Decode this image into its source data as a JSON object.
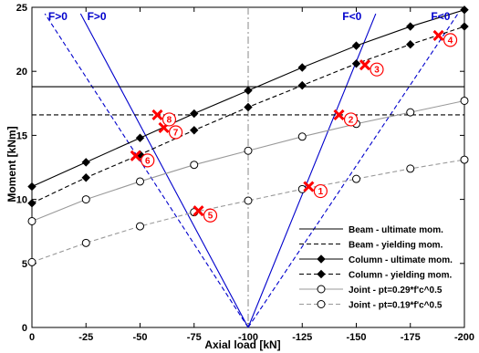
{
  "chart_data": {
    "type": "line",
    "xlabel": "Axial load [kN]",
    "ylabel": "Moment [kNm]",
    "xlim": [
      0,
      -200
    ],
    "ylim": [
      0,
      25
    ],
    "x_ticks": [
      0,
      -25,
      -50,
      -75,
      -100,
      -125,
      -150,
      -175,
      -200
    ],
    "x_tick_labels": [
      "0",
      "-25",
      "-50",
      "-75",
      "-100",
      "-125",
      "-150",
      "-175",
      "-200"
    ],
    "y_ticks": [
      0,
      5,
      10,
      15,
      20,
      25
    ],
    "y_tick_labels": [
      "0",
      "5",
      "10",
      "15",
      "20",
      "25"
    ],
    "grid": false,
    "legend_position": "bottom-right",
    "series": [
      {
        "name": "Beam - ultimate mom.",
        "style": "solid",
        "color": "#000000",
        "marker": "none",
        "x": [
          0,
          -200
        ],
        "y": [
          18.8,
          18.8
        ]
      },
      {
        "name": "Beam - yielding mom.",
        "style": "dashed",
        "color": "#000000",
        "marker": "none",
        "x": [
          0,
          -200
        ],
        "y": [
          16.6,
          16.6
        ]
      },
      {
        "name": "Column - ultimate mom.",
        "style": "solid",
        "color": "#000000",
        "marker": "diamond",
        "x": [
          0,
          -25,
          -50,
          -75,
          -100,
          -125,
          -150,
          -175,
          -200
        ],
        "y": [
          11.0,
          12.9,
          14.8,
          16.7,
          18.5,
          20.3,
          22.0,
          23.5,
          24.8
        ]
      },
      {
        "name": "Column - yielding mom.",
        "style": "dashed",
        "color": "#000000",
        "marker": "diamond",
        "x": [
          0,
          -25,
          -50,
          -75,
          -100,
          -125,
          -150,
          -175,
          -200
        ],
        "y": [
          9.7,
          11.7,
          13.5,
          15.4,
          17.2,
          18.9,
          20.6,
          22.1,
          23.5
        ]
      },
      {
        "name": "Joint - pt=0.29*f'c^0.5",
        "style": "solid",
        "color": "#999999",
        "marker": "circle",
        "x": [
          0,
          -25,
          -50,
          -75,
          -100,
          -125,
          -150,
          -175,
          -200
        ],
        "y": [
          8.3,
          10.0,
          11.4,
          12.7,
          13.8,
          14.9,
          15.9,
          16.8,
          17.7
        ]
      },
      {
        "name": "Joint - pt=0.19*f'c^0.5",
        "style": "dashed",
        "color": "#999999",
        "marker": "circle",
        "x": [
          0,
          -25,
          -50,
          -75,
          -100,
          -125,
          -150,
          -175,
          -200
        ],
        "y": [
          5.1,
          6.6,
          7.9,
          9.0,
          9.9,
          10.8,
          11.6,
          12.4,
          13.1
        ]
      }
    ],
    "load_lines": [
      {
        "label": "F>0",
        "style": "dashed",
        "color": "#0000cc",
        "x": [
          -100,
          -6
        ],
        "y": [
          0,
          24.5
        ]
      },
      {
        "label": "F>0",
        "style": "solid",
        "color": "#0000cc",
        "x": [
          -100,
          -22.5
        ],
        "y": [
          0,
          24.5
        ]
      },
      {
        "label": "F<0",
        "style": "solid",
        "color": "#0000cc",
        "x": [
          -100,
          -159
        ],
        "y": [
          0,
          24.5
        ]
      },
      {
        "label": "F<0",
        "style": "dashed",
        "color": "#0000cc",
        "x": [
          -100,
          -197
        ],
        "y": [
          0,
          24.5
        ]
      }
    ],
    "center_line": {
      "x": -100,
      "style": "dashdot",
      "color": "#888888"
    },
    "load_labels": [
      {
        "text": "F>0",
        "x": -12,
        "y": 24.0
      },
      {
        "text": "F>0",
        "x": -30,
        "y": 24.0
      },
      {
        "text": "F<0",
        "x": -148,
        "y": 24.0
      },
      {
        "text": "F<0",
        "x": -189,
        "y": 24.0
      }
    ],
    "events": [
      {
        "label": "1",
        "x": -128,
        "y": 11.0
      },
      {
        "label": "2",
        "x": -142,
        "y": 16.6
      },
      {
        "label": "3",
        "x": -154,
        "y": 20.5
      },
      {
        "label": "4",
        "x": -188,
        "y": 22.8
      },
      {
        "label": "5",
        "x": -77,
        "y": 9.1
      },
      {
        "label": "6",
        "x": -48,
        "y": 13.4
      },
      {
        "label": "7",
        "x": -61,
        "y": 15.6
      },
      {
        "label": "8",
        "x": -58,
        "y": 16.6
      }
    ],
    "event_color": "#ff0000"
  }
}
